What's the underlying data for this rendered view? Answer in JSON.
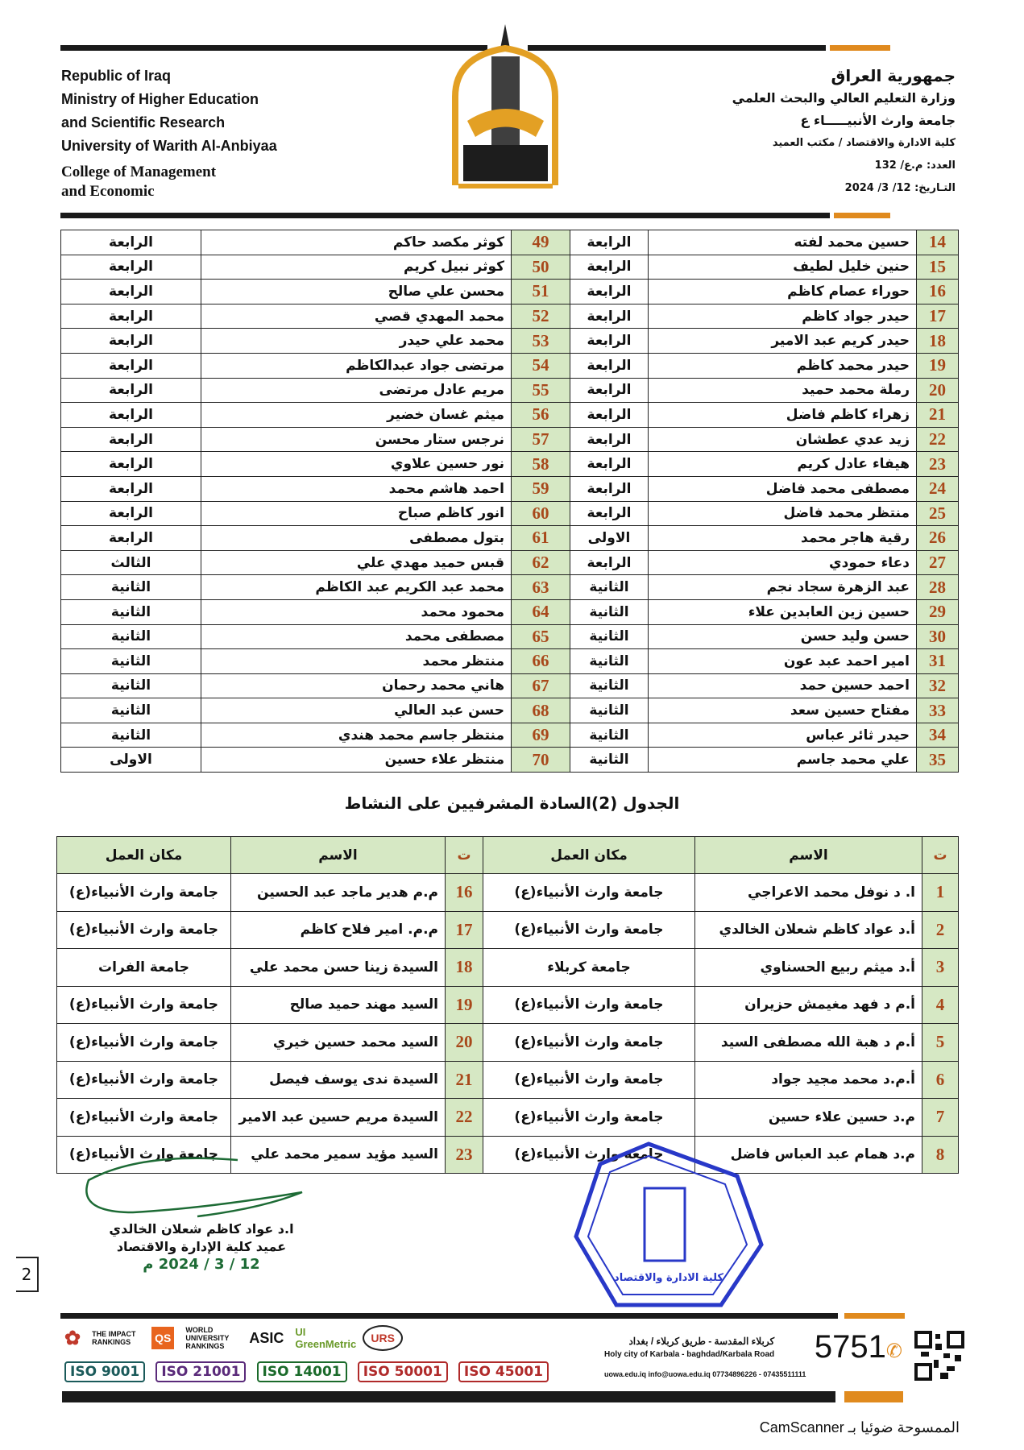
{
  "header": {
    "en": [
      "Republic of Iraq",
      "Ministry of Higher Education",
      "and Scientific Research",
      "University of Warith Al-Anbiyaa"
    ],
    "en_college": [
      "College of Management",
      "and Economic"
    ],
    "ar": [
      "جمهورية العراق",
      "وزارة التعليم العالي والبحث العلمي",
      "جامعة وارث الأنبيـــــاء ع",
      "كلية الادارة والاقتصاد / مكتب العميد",
      "العدد: م.ع/ 132",
      "التـاريخ: 12/ 3/ 2024"
    ],
    "logo_text": "جامعة وارث الأنبياء 2017"
  },
  "students": [
    {
      "n": "14",
      "name": "حسين محمد لفته",
      "grade": "الرابعة",
      "n2": "49",
      "name2": "كوثر مكصد حاكم",
      "grade2": "الرابعة"
    },
    {
      "n": "15",
      "name": "حنين خليل لطيف",
      "grade": "الرابعة",
      "n2": "50",
      "name2": "كوثر نبيل كريم",
      "grade2": "الرابعة"
    },
    {
      "n": "16",
      "name": "حوراء عصام كاظم",
      "grade": "الرابعة",
      "n2": "51",
      "name2": "محسن علي صالح",
      "grade2": "الرابعة"
    },
    {
      "n": "17",
      "name": "حيدر جواد كاظم",
      "grade": "الرابعة",
      "n2": "52",
      "name2": "محمد المهدي قصي",
      "grade2": "الرابعة"
    },
    {
      "n": "18",
      "name": "حيدر كريم عبد الامير",
      "grade": "الرابعة",
      "n2": "53",
      "name2": "محمد علي حيدر",
      "grade2": "الرابعة"
    },
    {
      "n": "19",
      "name": "حيدر محمد كاظم",
      "grade": "الرابعة",
      "n2": "54",
      "name2": "مرتضى جواد عبدالكاظم",
      "grade2": "الرابعة"
    },
    {
      "n": "20",
      "name": "رملة محمد حميد",
      "grade": "الرابعة",
      "n2": "55",
      "name2": "مريم عادل مرتضى",
      "grade2": "الرابعة"
    },
    {
      "n": "21",
      "name": "زهراء كاظم فاضل",
      "grade": "الرابعة",
      "n2": "56",
      "name2": "ميثم غسان خضير",
      "grade2": "الرابعة"
    },
    {
      "n": "22",
      "name": "زيد عدي عطشان",
      "grade": "الرابعة",
      "n2": "57",
      "name2": "نرجس ستار محسن",
      "grade2": "الرابعة"
    },
    {
      "n": "23",
      "name": "هيفاء عادل كريم",
      "grade": "الرابعة",
      "n2": "58",
      "name2": "نور حسين علاوي",
      "grade2": "الرابعة"
    },
    {
      "n": "24",
      "name": "مصطفى محمد فاضل",
      "grade": "الرابعة",
      "n2": "59",
      "name2": "احمد هاشم محمد",
      "grade2": "الرابعة"
    },
    {
      "n": "25",
      "name": "منتظر محمد فاضل",
      "grade": "الرابعة",
      "n2": "60",
      "name2": "انور كاظم صباح",
      "grade2": "الرابعة"
    },
    {
      "n": "26",
      "name": "رقية هاجر محمد",
      "grade": "الاولى",
      "n2": "61",
      "name2": "بتول مصطفى",
      "grade2": "الرابعة"
    },
    {
      "n": "27",
      "name": "دعاء حمودي",
      "grade": "الرابعة",
      "n2": "62",
      "name2": "قبس حميد مهدي علي",
      "grade2": "الثالث"
    },
    {
      "n": "28",
      "name": "عبد الزهرة سجاد نجم",
      "grade": "الثانية",
      "n2": "63",
      "name2": "محمد عبد الكريم عبد الكاظم",
      "grade2": "الثانية"
    },
    {
      "n": "29",
      "name": "حسين زين العابدين علاء",
      "grade": "الثانية",
      "n2": "64",
      "name2": "محمود محمد",
      "grade2": "الثانية"
    },
    {
      "n": "30",
      "name": "حسن وليد حسن",
      "grade": "الثانية",
      "n2": "65",
      "name2": "مصطفى محمد",
      "grade2": "الثانية"
    },
    {
      "n": "31",
      "name": "امير احمد عبد عون",
      "grade": "الثانية",
      "n2": "66",
      "name2": "منتظر محمد",
      "grade2": "الثانية"
    },
    {
      "n": "32",
      "name": "احمد حسين حمد",
      "grade": "الثانية",
      "n2": "67",
      "name2": "هاني محمد رحمان",
      "grade2": "الثانية"
    },
    {
      "n": "33",
      "name": "مفتاح حسين سعد",
      "grade": "الثانية",
      "n2": "68",
      "name2": "حسن عبد العالي",
      "grade2": "الثانية"
    },
    {
      "n": "34",
      "name": "حيدر ثائر عباس",
      "grade": "الثانية",
      "n2": "69",
      "name2": "منتظر جاسم محمد هندي",
      "grade2": "الثانية"
    },
    {
      "n": "35",
      "name": "علي محمد جاسم",
      "grade": "الثانية",
      "n2": "70",
      "name2": "منتظر علاء حسين",
      "grade2": "الاولى"
    }
  ],
  "table2": {
    "title": "الجدول (2)السادة المشرفيين على النشاط",
    "headers": {
      "n": "ت",
      "name": "الاسم",
      "place": "مكان العمل"
    },
    "rows": [
      {
        "n": "1",
        "name": "ا. د نوفل محمد  الاعراجي",
        "place": "جامعة وارث الأنبياء(ع)",
        "n2": "16",
        "name2": "م.م هدير ماجد عبد الحسين",
        "place2": "جامعة وارث الأنبياء(ع)"
      },
      {
        "n": "2",
        "name": "أ.د عواد كاظم شعلان الخالدي",
        "place": "جامعة وارث الأنبياء(ع)",
        "n2": "17",
        "name2": "م.م. امير فلاح كاظم",
        "place2": "جامعة وارث الأنبياء(ع)"
      },
      {
        "n": "3",
        "name": "أ.د ميثم ربيع الحسناوي",
        "place": "جامعة كربلاء",
        "n2": "18",
        "name2": "السيدة زينا حسن محمد علي",
        "place2": "جامعة الفرات"
      },
      {
        "n": "4",
        "name": "أ.م د فهد مغيمش حزيران",
        "place": "جامعة وارث الأنبياء(ع)",
        "n2": "19",
        "name2": "السيد مهند حميد صالح",
        "place2": "جامعة وارث الأنبياء(ع)"
      },
      {
        "n": "5",
        "name": "أ.م د هبة الله مصطفى السيد",
        "place": "جامعة وارث الأنبياء(ع)",
        "n2": "20",
        "name2": "السيد محمد حسين خيري",
        "place2": "جامعة وارث الأنبياء(ع)"
      },
      {
        "n": "6",
        "name": "أ.م.د محمد مجيد جواد",
        "place": "جامعة وارث الأنبياء(ع)",
        "n2": "21",
        "name2": "السيدة ندى يوسف فيصل",
        "place2": "جامعة وارث الأنبياء(ع)"
      },
      {
        "n": "7",
        "name": "م.د حسين علاء حسين",
        "place": "جامعة وارث الأنبياء(ع)",
        "n2": "22",
        "name2": "السيدة مريم حسين عبد الامير",
        "place2": "جامعة وارث الأنبياء(ع)"
      },
      {
        "n": "8",
        "name": "م.د همام عبد العباس فاضل",
        "place": "جامعة وارث الأنبياء(ع)",
        "n2": "23",
        "name2": "السيد مؤيد سمير محمد علي",
        "place2": "جامعة وارث الأنبياء(ع)"
      }
    ]
  },
  "signature": {
    "name": "ا.د عواد كاظم شعلان الخالدي",
    "title": "عميد كلية الإدارة والاقتصاد",
    "date": "12 / 3 / 2024 م"
  },
  "stamp_text": "مكتب العميد - كلية الادارة والاقتصاد - جامعة وارث الأنبياء",
  "page_number": "2",
  "footer": {
    "address_ar": "كربلاء المقدسة - طريق كربلاء / بغداد",
    "address_en": "Holy city of Karbala - baghdad/Karbala Road",
    "hotline": "5751",
    "contacts": "uowa.edu.iq  info@uowa.edu.iq  07734896226 - 07435511111",
    "rankings": [
      "THE IMPACT RANKINGS",
      "QS",
      "WORLD UNIVERSITY RANKINGS",
      "ASIC",
      "UI GreenMetric",
      "URS"
    ],
    "iso": [
      "ISO 9001",
      "ISO 21001",
      "ISO 14001",
      "ISO 50001",
      "ISO 45001"
    ],
    "colors": {
      "dark": "#1a1a1a",
      "orange": "#e08a1e",
      "green_cell": "#d6e8c4",
      "number": "#a8481a"
    }
  },
  "scanner": "الممسوحة ضوئيا بـ CamScanner"
}
